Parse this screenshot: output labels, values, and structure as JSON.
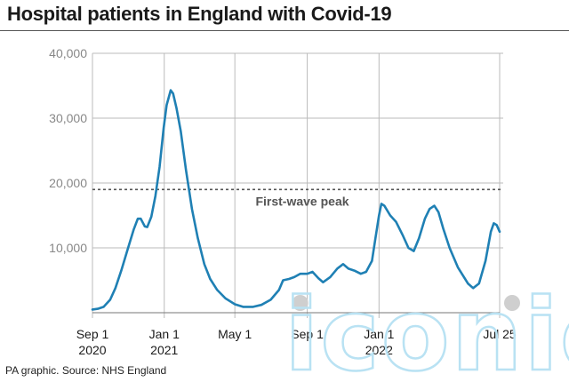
{
  "title": "Hospital patients in England with Covid-19",
  "source": "PA graphic. Source: NHS England",
  "reference_label": "First-wave peak",
  "watermark_text": "iconic",
  "colors": {
    "line": "#1f80b4",
    "grid": "#bbbbbb",
    "reference": "#555555",
    "axis_text": "#888888",
    "watermark": "#b9e2f3"
  },
  "chart_data": {
    "type": "line",
    "title": "Hospital patients in England with Covid-19",
    "x_unit": "date",
    "ylim": [
      0,
      40000
    ],
    "xlim": [
      "2020-09-01",
      "2022-07-25"
    ],
    "grid": true,
    "y_ticks": [
      {
        "value": 10000,
        "label": "10,000"
      },
      {
        "value": 20000,
        "label": "20,000"
      },
      {
        "value": 30000,
        "label": "30,000"
      },
      {
        "value": 40000,
        "label": "40,000"
      }
    ],
    "x_ticks": [
      {
        "date": "2020-09-01",
        "line1": "Sep 1",
        "line2": "2020"
      },
      {
        "date": "2021-01-01",
        "line1": "Jan 1",
        "line2": "2021"
      },
      {
        "date": "2021-05-01",
        "line1": "May 1",
        "line2": ""
      },
      {
        "date": "2021-09-01",
        "line1": "Sep 1",
        "line2": ""
      },
      {
        "date": "2022-01-01",
        "line1": "Jan 1",
        "line2": "2022"
      },
      {
        "date": "2022-07-25",
        "line1": "Jul 25",
        "line2": ""
      }
    ],
    "reference_line": {
      "value": 19000,
      "label": "First-wave peak"
    },
    "series": [
      {
        "values": [
          [
            "2020-09-01",
            500
          ],
          [
            "2020-09-10",
            600
          ],
          [
            "2020-09-20",
            900
          ],
          [
            "2020-10-01",
            2000
          ],
          [
            "2020-10-10",
            3800
          ],
          [
            "2020-10-20",
            6500
          ],
          [
            "2020-10-30",
            9500
          ],
          [
            "2020-11-10",
            12800
          ],
          [
            "2020-11-17",
            14500
          ],
          [
            "2020-11-22",
            14500
          ],
          [
            "2020-11-29",
            13300
          ],
          [
            "2020-12-03",
            13200
          ],
          [
            "2020-12-10",
            14800
          ],
          [
            "2020-12-17",
            18000
          ],
          [
            "2020-12-24",
            22500
          ],
          [
            "2020-12-31",
            28500
          ],
          [
            "2021-01-05",
            32000
          ],
          [
            "2021-01-12",
            34300
          ],
          [
            "2021-01-16",
            33800
          ],
          [
            "2021-01-22",
            31500
          ],
          [
            "2021-01-29",
            28000
          ],
          [
            "2021-02-07",
            22000
          ],
          [
            "2021-02-17",
            16000
          ],
          [
            "2021-02-27",
            11500
          ],
          [
            "2021-03-10",
            7500
          ],
          [
            "2021-03-20",
            5200
          ],
          [
            "2021-04-01",
            3500
          ],
          [
            "2021-04-15",
            2200
          ],
          [
            "2021-05-01",
            1300
          ],
          [
            "2021-05-15",
            900
          ],
          [
            "2021-06-01",
            900
          ],
          [
            "2021-06-15",
            1200
          ],
          [
            "2021-07-01",
            2000
          ],
          [
            "2021-07-15",
            3500
          ],
          [
            "2021-07-22",
            5000
          ],
          [
            "2021-08-01",
            5200
          ],
          [
            "2021-08-10",
            5500
          ],
          [
            "2021-08-20",
            6000
          ],
          [
            "2021-09-01",
            6000
          ],
          [
            "2021-09-10",
            6300
          ],
          [
            "2021-09-20",
            5300
          ],
          [
            "2021-09-28",
            4700
          ],
          [
            "2021-10-10",
            5500
          ],
          [
            "2021-10-22",
            6800
          ],
          [
            "2021-11-01",
            7500
          ],
          [
            "2021-11-10",
            6800
          ],
          [
            "2021-11-20",
            6500
          ],
          [
            "2021-12-01",
            6000
          ],
          [
            "2021-12-10",
            6300
          ],
          [
            "2021-12-20",
            8000
          ],
          [
            "2021-12-26",
            11500
          ],
          [
            "2022-01-01",
            15000
          ],
          [
            "2022-01-05",
            16800
          ],
          [
            "2022-01-10",
            16500
          ],
          [
            "2022-01-20",
            15000
          ],
          [
            "2022-01-30",
            14000
          ],
          [
            "2022-02-10",
            12000
          ],
          [
            "2022-02-20",
            10000
          ],
          [
            "2022-03-01",
            9500
          ],
          [
            "2022-03-10",
            11500
          ],
          [
            "2022-03-20",
            14500
          ],
          [
            "2022-03-28",
            16000
          ],
          [
            "2022-04-05",
            16500
          ],
          [
            "2022-04-12",
            15500
          ],
          [
            "2022-04-20",
            13000
          ],
          [
            "2022-05-01",
            10000
          ],
          [
            "2022-05-15",
            7000
          ],
          [
            "2022-06-01",
            4500
          ],
          [
            "2022-06-10",
            3800
          ],
          [
            "2022-06-20",
            4500
          ],
          [
            "2022-07-01",
            8000
          ],
          [
            "2022-07-10",
            12500
          ],
          [
            "2022-07-15",
            13800
          ],
          [
            "2022-07-20",
            13500
          ],
          [
            "2022-07-25",
            12500
          ]
        ]
      }
    ]
  }
}
